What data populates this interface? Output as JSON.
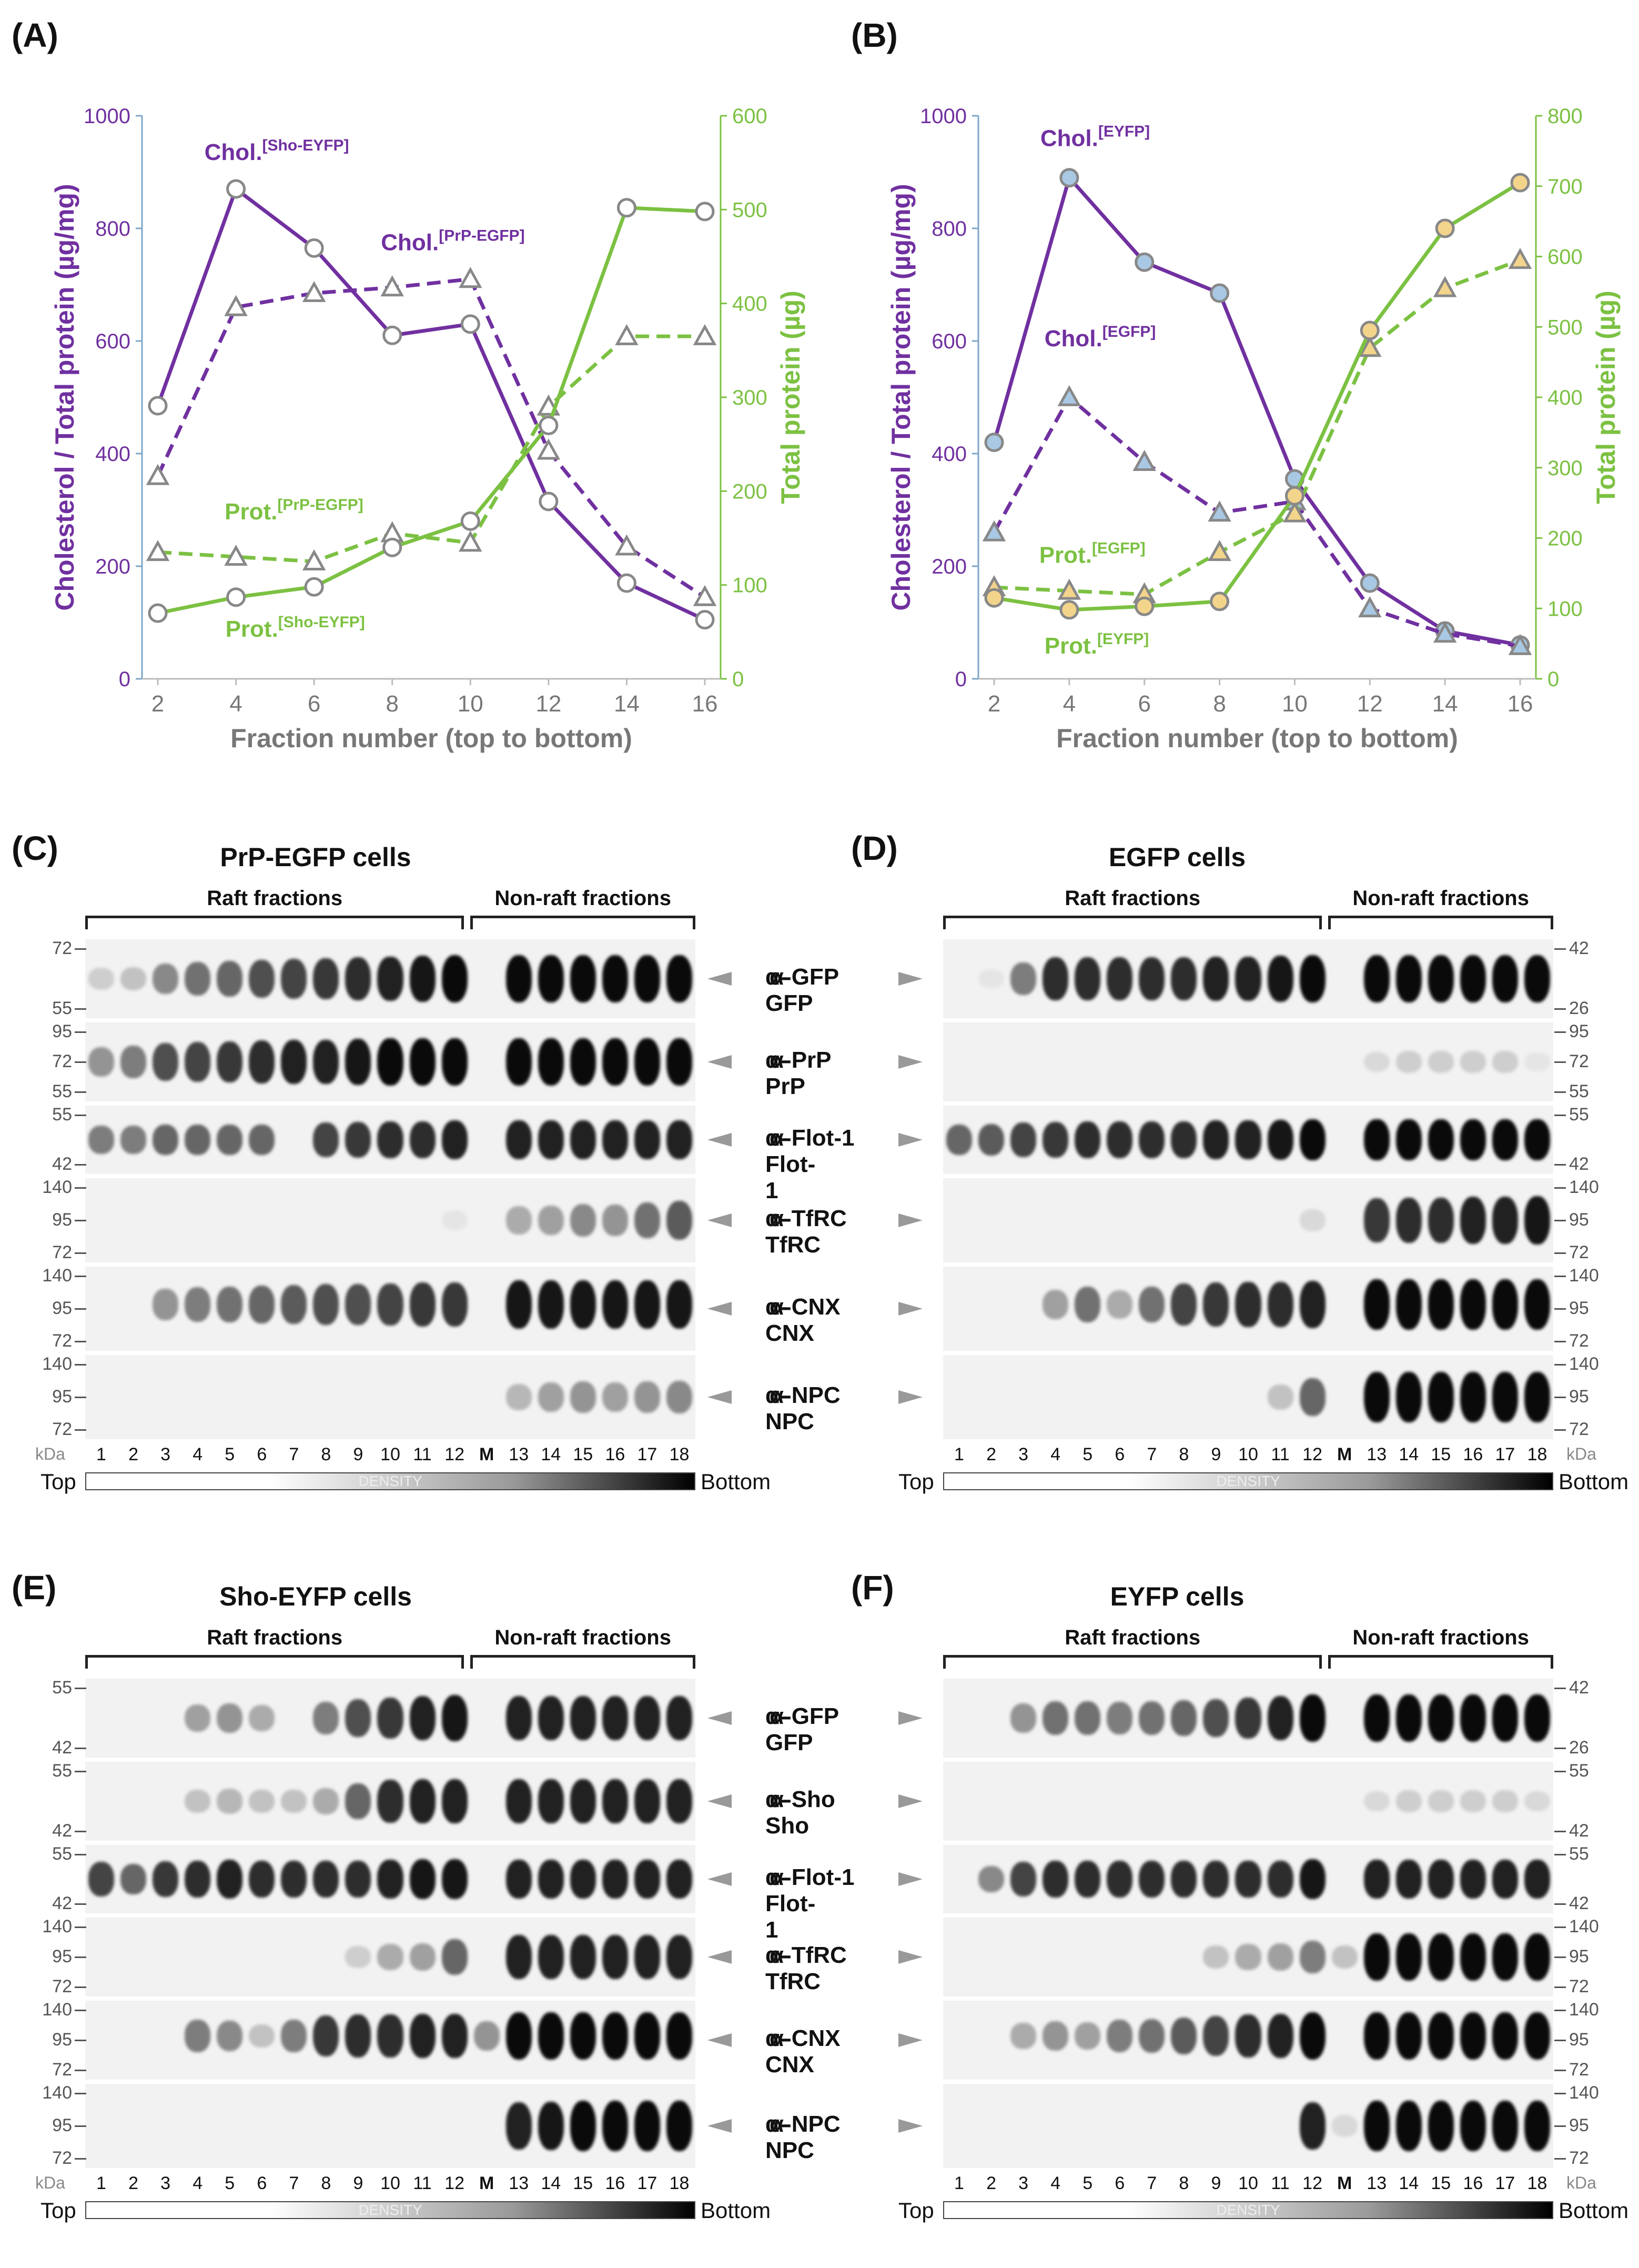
{
  "panels": {
    "A": "(A)",
    "B": "(B)",
    "C": "(C)",
    "D": "(D)",
    "E": "(E)",
    "F": "(F)"
  },
  "colors": {
    "chol": "#7030a0",
    "prot": "#7cc142",
    "axis_left": "#7030a0",
    "axis_right": "#7cc142",
    "grid": "#999999"
  },
  "chart_data": [
    {
      "type": "line",
      "panel": "A",
      "xlabel": "Fraction number (top to bottom)",
      "ylabel_left": "Cholesterol / Total protein (µg/mg)",
      "ylabel_right": "Total protein (µg)",
      "x": [
        2,
        4,
        6,
        8,
        10,
        12,
        14,
        16
      ],
      "ylim_left": [
        0,
        1000
      ],
      "ylim_right": [
        0,
        600
      ],
      "yticks_left": [
        0,
        200,
        400,
        600,
        800,
        1000
      ],
      "yticks_right": [
        0,
        100,
        200,
        300,
        400,
        500,
        600
      ],
      "series": [
        {
          "name": "Chol.[Sho-EYFP]",
          "main": "Chol.",
          "sup": "[Sho-EYFP]",
          "axis": "left",
          "style": "solid",
          "marker": "circle",
          "color": "#7030a0",
          "values": [
            485,
            870,
            765,
            610,
            630,
            315,
            170,
            105
          ]
        },
        {
          "name": "Chol.[PrP-EGFP]",
          "main": "Chol.",
          "sup": "[PrP-EGFP]",
          "axis": "left",
          "style": "dashed",
          "marker": "triangle",
          "color": "#7030a0",
          "values": [
            360,
            660,
            685,
            695,
            710,
            405,
            235,
            145
          ]
        },
        {
          "name": "Prot.[PrP-EGFP]",
          "main": "Prot.",
          "sup": "[PrP-EGFP]",
          "axis": "right",
          "style": "dashed",
          "marker": "triangle",
          "color": "#7cc142",
          "values": [
            135,
            130,
            125,
            155,
            145,
            290,
            365,
            365
          ]
        },
        {
          "name": "Prot.[Sho-EYFP]",
          "main": "Prot.",
          "sup": "[Sho-EYFP]",
          "axis": "right",
          "style": "solid",
          "marker": "circle",
          "color": "#7cc142",
          "values": [
            70,
            87,
            98,
            140,
            168,
            270,
            502,
            498
          ]
        }
      ]
    },
    {
      "type": "line",
      "panel": "B",
      "xlabel": "Fraction number (top to bottom)",
      "ylabel_left": "Cholesterol / Total protein (µg/mg)",
      "ylabel_right": "Total protein (µg)",
      "x": [
        2,
        4,
        6,
        8,
        10,
        12,
        14,
        16
      ],
      "ylim_left": [
        0,
        1000
      ],
      "ylim_right": [
        0,
        800
      ],
      "yticks_left": [
        0,
        200,
        400,
        600,
        800,
        1000
      ],
      "yticks_right": [
        0,
        100,
        200,
        300,
        400,
        500,
        600,
        700,
        800
      ],
      "series": [
        {
          "name": "Chol.[EYFP]",
          "main": "Chol.",
          "sup": "[EYFP]",
          "axis": "left",
          "style": "solid",
          "marker": "circle",
          "color": "#7030a0",
          "values": [
            420,
            890,
            740,
            685,
            355,
            170,
            85,
            60
          ]
        },
        {
          "name": "Chol.[EGFP]",
          "main": "Chol.",
          "sup": "[EGFP]",
          "axis": "left",
          "style": "dashed",
          "marker": "triangle",
          "color": "#7030a0",
          "values": [
            260,
            500,
            385,
            295,
            315,
            125,
            80,
            58
          ]
        },
        {
          "name": "Prot.[EGFP]",
          "main": "Prot.",
          "sup": "[EGFP]",
          "axis": "right",
          "style": "dashed",
          "marker": "triangle",
          "color": "#7cc142",
          "values": [
            130,
            125,
            120,
            180,
            235,
            470,
            555,
            595
          ]
        },
        {
          "name": "Prot.[EYFP]",
          "main": "Prot.",
          "sup": "[EYFP]",
          "axis": "right",
          "style": "solid",
          "marker": "circle",
          "color": "#7cc142",
          "values": [
            115,
            98,
            103,
            110,
            260,
            495,
            640,
            705
          ]
        }
      ]
    }
  ],
  "blots": {
    "C": {
      "title": "PrP-EGFP cells",
      "raft": "Raft fractions",
      "nonraft": "Non-raft fractions"
    },
    "D": {
      "title": "EGFP cells",
      "raft": "Raft fractions",
      "nonraft": "Non-raft fractions"
    },
    "E": {
      "title": "Sho-EYFP cells",
      "raft": "Raft fractions",
      "nonraft": "Non-raft fractions"
    },
    "F": {
      "title": "EYFP cells",
      "raft": "Raft fractions",
      "nonraft": "Non-raft fractions"
    }
  },
  "antibodies": {
    "C": [
      "α-GFP",
      "α-PrP",
      "α-Flot-1",
      "α-TfRC",
      "α-CNX",
      "α-NPC"
    ],
    "D": [
      "α-GFP",
      "α-PrP",
      "α-Flot-1",
      "α-TfRC",
      "α-CNX",
      "α-NPC"
    ],
    "E": [
      "α-GFP",
      "α-Sho",
      "α-Flot-1",
      "α-TfRC",
      "α-CNX",
      "α-NPC"
    ],
    "F": [
      "α-GFP",
      "α-Sho",
      "α-Flot-1",
      "α-TfRC",
      "α-CNX",
      "α-NPC"
    ]
  },
  "mw_markers": {
    "C": [
      [
        "72",
        "55"
      ],
      [
        "95",
        "72",
        "55"
      ],
      [
        "55",
        "42"
      ],
      [
        "140",
        "95",
        "72"
      ],
      [
        "140",
        "95",
        "72"
      ],
      [
        "140",
        "95",
        "72"
      ]
    ],
    "D": [
      [
        "42",
        "26"
      ],
      [
        "95",
        "72",
        "55"
      ],
      [
        "55",
        "42"
      ],
      [
        "140",
        "95",
        "72"
      ],
      [
        "140",
        "95",
        "72"
      ],
      [
        "140",
        "95",
        "72"
      ]
    ],
    "E": [
      [
        "55",
        "42"
      ],
      [
        "55",
        "42"
      ],
      [
        "55",
        "42"
      ],
      [
        "140",
        "95",
        "72"
      ],
      [
        "140",
        "95",
        "72"
      ],
      [
        "140",
        "95",
        "72"
      ]
    ],
    "F": [
      [
        "42",
        "26"
      ],
      [
        "55",
        "42"
      ],
      [
        "55",
        "42"
      ],
      [
        "140",
        "95",
        "72"
      ],
      [
        "140",
        "95",
        "72"
      ],
      [
        "140",
        "95",
        "72"
      ]
    ]
  },
  "lanes": [
    "1",
    "2",
    "3",
    "4",
    "5",
    "6",
    "7",
    "8",
    "9",
    "10",
    "11",
    "12",
    "M",
    "13",
    "14",
    "15",
    "16",
    "17",
    "18"
  ],
  "kda": "kDa",
  "density": {
    "top": "Top",
    "bottom": "Bottom",
    "label": "DENSITY"
  }
}
